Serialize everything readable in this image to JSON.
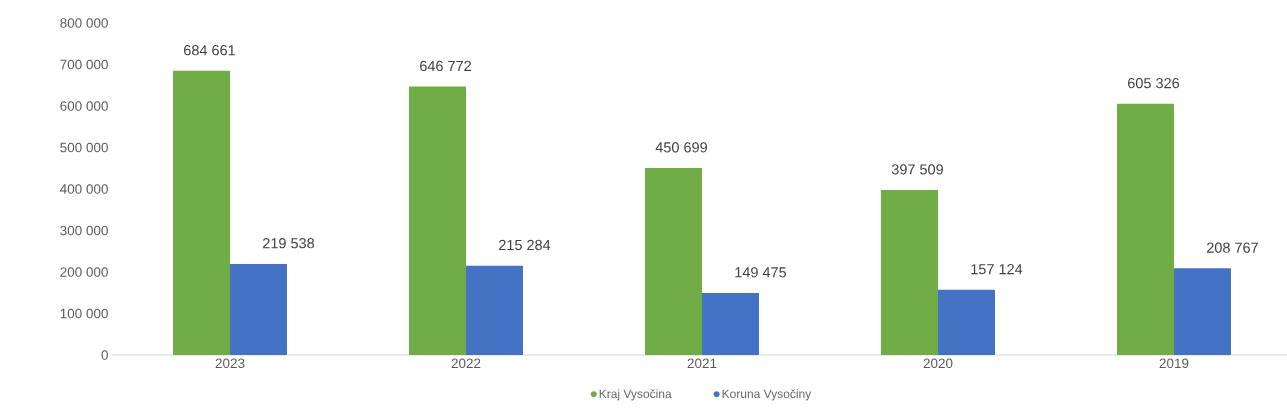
{
  "chart_data": {
    "type": "bar",
    "categories": [
      "2023",
      "2022",
      "2021",
      "2020",
      "2019"
    ],
    "series": [
      {
        "name": "Kraj Vysočina",
        "color": "#70ad47",
        "values": [
          684661,
          646772,
          450699,
          397509,
          605326
        ],
        "value_labels": [
          "684 661",
          "646 772",
          "450 699",
          "397 509",
          "605 326"
        ]
      },
      {
        "name": "Koruna Vysočiny",
        "color": "#4472c4",
        "values": [
          219538,
          215284,
          149475,
          157124,
          208767
        ],
        "value_labels": [
          "219 538",
          "215 284",
          "149 475",
          "157 124",
          "208 767"
        ]
      }
    ],
    "ylim": [
      0,
      800000
    ],
    "yticks": [
      {
        "value": 0,
        "label": "0"
      },
      {
        "value": 100000,
        "label": "100 000"
      },
      {
        "value": 200000,
        "label": "200 000"
      },
      {
        "value": 300000,
        "label": "300 000"
      },
      {
        "value": 400000,
        "label": "400 000"
      },
      {
        "value": 500000,
        "label": "500 000"
      },
      {
        "value": 600000,
        "label": "600 000"
      },
      {
        "value": 700000,
        "label": "700 000"
      },
      {
        "value": 800000,
        "label": "800 000"
      }
    ],
    "grid": false,
    "legend": "bottom"
  }
}
